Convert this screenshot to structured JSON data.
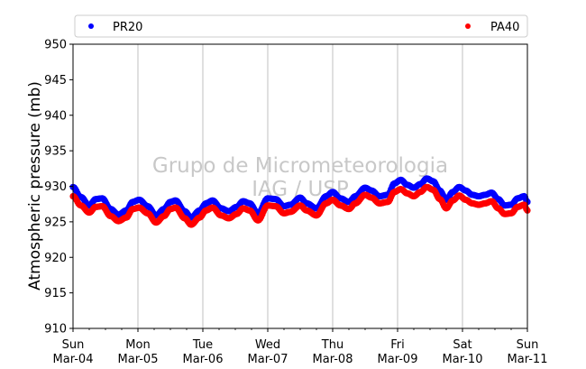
{
  "chart_data": {
    "type": "scatter",
    "ylabel": "Atmospheric pressure (mb)",
    "ylim": [
      910,
      950
    ],
    "yticks": [
      910,
      915,
      920,
      925,
      930,
      935,
      940,
      945,
      950
    ],
    "xlim_days": [
      0,
      7
    ],
    "xticks": [
      {
        "day": "Sun",
        "date": "Mar-04"
      },
      {
        "day": "Mon",
        "date": "Mar-05"
      },
      {
        "day": "Tue",
        "date": "Mar-06"
      },
      {
        "day": "Wed",
        "date": "Mar-07"
      },
      {
        "day": "Thu",
        "date": "Mar-08"
      },
      {
        "day": "Fri",
        "date": "Mar-09"
      },
      {
        "day": "Sat",
        "date": "Mar-10"
      },
      {
        "day": "Sun",
        "date": "Mar-11"
      }
    ],
    "grid": "vertical",
    "legend": "top",
    "watermark": [
      "Grupo de Micrometeorologia",
      "IAG / USP"
    ],
    "series": [
      {
        "name": "PR20",
        "color": "#0000ff",
        "points": [
          [
            0.0,
            929.9
          ],
          [
            0.12,
            928.5
          ],
          [
            0.25,
            927.3
          ],
          [
            0.35,
            928.2
          ],
          [
            0.45,
            928.3
          ],
          [
            0.58,
            926.8
          ],
          [
            0.7,
            926.0
          ],
          [
            0.82,
            926.6
          ],
          [
            0.92,
            927.8
          ],
          [
            1.02,
            928.1
          ],
          [
            1.15,
            927.2
          ],
          [
            1.28,
            925.9
          ],
          [
            1.4,
            926.8
          ],
          [
            1.5,
            927.8
          ],
          [
            1.58,
            928.0
          ],
          [
            1.72,
            926.5
          ],
          [
            1.82,
            925.6
          ],
          [
            1.95,
            926.6
          ],
          [
            2.05,
            927.6
          ],
          [
            2.15,
            928.0
          ],
          [
            2.28,
            926.9
          ],
          [
            2.4,
            926.5
          ],
          [
            2.52,
            927.1
          ],
          [
            2.62,
            927.9
          ],
          [
            2.72,
            927.6
          ],
          [
            2.85,
            926.2
          ],
          [
            3.0,
            928.3
          ],
          [
            3.12,
            928.2
          ],
          [
            3.25,
            927.2
          ],
          [
            3.35,
            927.4
          ],
          [
            3.5,
            928.4
          ],
          [
            3.6,
            927.6
          ],
          [
            3.75,
            926.9
          ],
          [
            3.9,
            928.6
          ],
          [
            4.0,
            929.2
          ],
          [
            4.12,
            928.3
          ],
          [
            4.25,
            927.8
          ],
          [
            4.35,
            928.6
          ],
          [
            4.5,
            929.8
          ],
          [
            4.6,
            929.4
          ],
          [
            4.72,
            928.6
          ],
          [
            4.85,
            928.8
          ],
          [
            4.95,
            930.4
          ],
          [
            5.05,
            930.9
          ],
          [
            5.15,
            930.2
          ],
          [
            5.25,
            929.8
          ],
          [
            5.35,
            930.3
          ],
          [
            5.45,
            931.1
          ],
          [
            5.55,
            930.7
          ],
          [
            5.65,
            929.4
          ],
          [
            5.75,
            928.1
          ],
          [
            5.85,
            929.2
          ],
          [
            5.95,
            929.9
          ],
          [
            6.05,
            929.4
          ],
          [
            6.15,
            928.8
          ],
          [
            6.25,
            928.6
          ],
          [
            6.35,
            928.8
          ],
          [
            6.45,
            929.1
          ],
          [
            6.55,
            928.2
          ],
          [
            6.65,
            927.3
          ],
          [
            6.75,
            927.4
          ],
          [
            6.85,
            928.3
          ],
          [
            6.95,
            928.6
          ],
          [
            7.0,
            927.8
          ]
        ]
      },
      {
        "name": "PA40",
        "color": "#ff0000",
        "points": [
          [
            0.0,
            928.6
          ],
          [
            0.12,
            927.3
          ],
          [
            0.25,
            926.3
          ],
          [
            0.35,
            927.1
          ],
          [
            0.45,
            927.2
          ],
          [
            0.58,
            925.8
          ],
          [
            0.7,
            925.1
          ],
          [
            0.82,
            925.6
          ],
          [
            0.92,
            926.8
          ],
          [
            1.02,
            927.0
          ],
          [
            1.15,
            926.2
          ],
          [
            1.28,
            924.9
          ],
          [
            1.4,
            925.8
          ],
          [
            1.5,
            926.8
          ],
          [
            1.58,
            927.0
          ],
          [
            1.72,
            925.5
          ],
          [
            1.82,
            924.6
          ],
          [
            1.95,
            925.6
          ],
          [
            2.05,
            926.6
          ],
          [
            2.15,
            927.0
          ],
          [
            2.28,
            925.9
          ],
          [
            2.4,
            925.5
          ],
          [
            2.52,
            926.1
          ],
          [
            2.62,
            926.9
          ],
          [
            2.72,
            926.6
          ],
          [
            2.85,
            925.2
          ],
          [
            3.0,
            927.3
          ],
          [
            3.12,
            927.2
          ],
          [
            3.25,
            926.2
          ],
          [
            3.35,
            926.4
          ],
          [
            3.5,
            927.3
          ],
          [
            3.6,
            926.6
          ],
          [
            3.75,
            925.9
          ],
          [
            3.9,
            927.6
          ],
          [
            4.0,
            928.1
          ],
          [
            4.12,
            927.3
          ],
          [
            4.25,
            926.8
          ],
          [
            4.35,
            927.6
          ],
          [
            4.5,
            928.8
          ],
          [
            4.6,
            928.4
          ],
          [
            4.72,
            927.6
          ],
          [
            4.85,
            927.8
          ],
          [
            4.95,
            929.2
          ],
          [
            5.05,
            929.6
          ],
          [
            5.15,
            929.0
          ],
          [
            5.25,
            928.6
          ],
          [
            5.35,
            929.2
          ],
          [
            5.45,
            929.9
          ],
          [
            5.55,
            929.5
          ],
          [
            5.65,
            928.2
          ],
          [
            5.75,
            926.9
          ],
          [
            5.85,
            928.0
          ],
          [
            5.95,
            928.7
          ],
          [
            6.05,
            928.1
          ],
          [
            6.15,
            927.6
          ],
          [
            6.25,
            927.4
          ],
          [
            6.35,
            927.6
          ],
          [
            6.45,
            927.9
          ],
          [
            6.55,
            926.9
          ],
          [
            6.65,
            926.1
          ],
          [
            6.75,
            926.2
          ],
          [
            6.85,
            927.1
          ],
          [
            6.95,
            927.4
          ],
          [
            7.0,
            926.6
          ]
        ]
      }
    ]
  }
}
